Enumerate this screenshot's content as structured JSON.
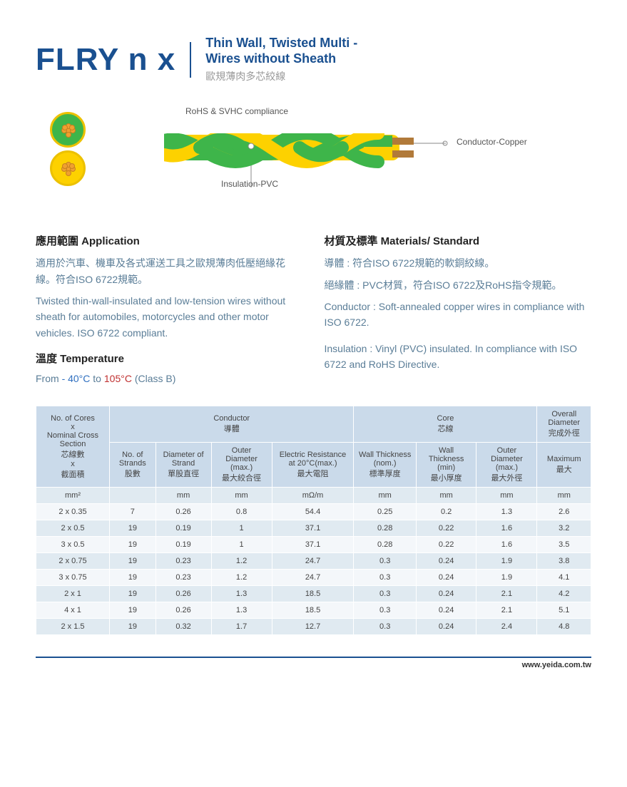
{
  "header": {
    "title": "FLRY n x",
    "subtitle_en_l1": "Thin Wall, Twisted Multi -",
    "subtitle_en_l2": "Wires without Sheath",
    "subtitle_zh": "歐規薄肉多芯絞線"
  },
  "diagram": {
    "rohs_label": "RoHS & SVHC compliance",
    "insulation_label": "Insulation-PVC",
    "conductor_label": "Conductor-Copper",
    "colors": {
      "green": "#3eb54a",
      "yellow": "#fdd100",
      "border": "#ecc100",
      "copper": "#b17a3a"
    }
  },
  "application": {
    "title": "應用範圍 Application",
    "zh": "適用於汽車、機車及各式運送工具之歐規薄肉低壓絕緣花線。符合ISO 6722規範。",
    "en": "Twisted thin-wall-insulated and low-tension wires without sheath for automobiles, motorcycles and other motor vehicles. ISO 6722 compliant."
  },
  "temperature": {
    "title": "溫度 Temperature",
    "prefix": "From ",
    "low": "- 40°C",
    "mid": " to ",
    "high": "105°C",
    "suffix": " (Class B)"
  },
  "materials": {
    "title": "材質及標準 Materials/ Standard",
    "zh_l1": "導體 : 符合ISO 6722規範的軟銅絞線。",
    "zh_l2": "絕緣體 : PVC材質，符合ISO 6722及RoHS指令規範。",
    "en_l1": "Conductor : Soft-annealed copper wires in compliance with ISO 6722.",
    "en_l2": "Insulation : Vinyl (PVC) insulated. In compliance with ISO 6722 and RoHS Directive."
  },
  "table": {
    "groups": {
      "cores": "No. of Cores\nx\nNominal Cross Section\n芯線數\nx\n截面積",
      "conductor": "Conductor\n導體",
      "core": "Core\n芯線",
      "overall": "Overall Diameter\n完成外徑"
    },
    "cols": {
      "strands": "No. of Strands\n股數",
      "dia_strand": "Diameter of Strand\n單股直徑",
      "outer_dia": "Outer Diameter (max.)\n最大絞合徑",
      "resistance": "Electric Resistance at 20°C(max.)\n最大電阻",
      "wall_nom": "Wall Thickness (nom.)\n標準厚度",
      "wall_min": "Wall Thickness (min)\n最小厚度",
      "core_outer": "Outer Diameter (max.)\n最大外徑",
      "max": "Maximum\n最大"
    },
    "units": [
      "mm²",
      "",
      "mm",
      "mm",
      "mΩ/m",
      "mm",
      "mm",
      "mm",
      "mm"
    ],
    "rows": [
      [
        "2 x 0.35",
        "7",
        "0.26",
        "0.8",
        "54.4",
        "0.25",
        "0.2",
        "1.3",
        "2.6"
      ],
      [
        "2 x 0.5",
        "19",
        "0.19",
        "1",
        "37.1",
        "0.28",
        "0.22",
        "1.6",
        "3.2"
      ],
      [
        "3 x 0.5",
        "19",
        "0.19",
        "1",
        "37.1",
        "0.28",
        "0.22",
        "1.6",
        "3.5"
      ],
      [
        "2 x 0.75",
        "19",
        "0.23",
        "1.2",
        "24.7",
        "0.3",
        "0.24",
        "1.9",
        "3.8"
      ],
      [
        "3 x 0.75",
        "19",
        "0.23",
        "1.2",
        "24.7",
        "0.3",
        "0.24",
        "1.9",
        "4.1"
      ],
      [
        "2 x 1",
        "19",
        "0.26",
        "1.3",
        "18.5",
        "0.3",
        "0.24",
        "2.1",
        "4.2"
      ],
      [
        "4 x 1",
        "19",
        "0.26",
        "1.3",
        "18.5",
        "0.3",
        "0.24",
        "2.1",
        "5.1"
      ],
      [
        "2 x 1.5",
        "19",
        "0.32",
        "1.7",
        "12.7",
        "0.3",
        "0.24",
        "2.4",
        "4.8"
      ]
    ]
  },
  "footer": "www.yeida.com.tw"
}
